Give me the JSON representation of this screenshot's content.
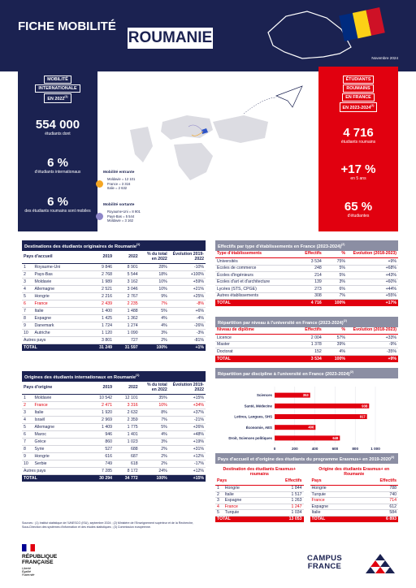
{
  "header": {
    "title": "FICHE MOBILITÉ",
    "country": "ROUMANIE",
    "date": "Novembre 2024"
  },
  "outgoing_panel": {
    "label": [
      "MOBILITÉ",
      "INTERNATIONALE",
      "EN 2022"
    ],
    "label_note": "(1)",
    "stats": [
      {
        "value": "554 000",
        "text": "étudiants dont"
      },
      {
        "value": "6 %",
        "text": "d'étudiants internationaux"
      },
      {
        "value": "6 %",
        "text": "des étudiants roumains sont mobiles"
      }
    ]
  },
  "map_legend": [
    {
      "title": "Mobilité entrante",
      "color": "#f5a623",
      "items": [
        "Moldavie = 12 101",
        "France = 3 316",
        "Italie = 2 632"
      ]
    },
    {
      "title": "Mobilité sortante",
      "color": "#8e86c8",
      "items": [
        "Royaume-Uni = 8 901",
        "Pays-Bas = 5 544",
        "Moldavie = 3 162"
      ]
    }
  ],
  "france_panel": {
    "label": [
      "ÉTUDIANTS",
      "ROUMAINS",
      "EN FRANCE",
      "EN 2023-2024"
    ],
    "label_note": "(2)",
    "stats": [
      {
        "value": "4 716",
        "text": "étudiants roumains"
      },
      {
        "value": "+17 %",
        "text": "en 5 ans"
      },
      {
        "value": "65 %",
        "text": "d'étudiantes"
      }
    ]
  },
  "destinations_table": {
    "title": "Destinations des étudiants originaires de Roumanie",
    "title_note": "(1)",
    "headers": [
      "Pays d'accueil",
      "2019",
      "2022",
      "% du total en 2022",
      "Évolution 2019-2022"
    ],
    "rows": [
      [
        "1",
        "Royaume-Uni",
        "9 846",
        "8 901",
        "28%",
        "-10%"
      ],
      [
        "2",
        "Pays-Bas",
        "2 768",
        "5 544",
        "18%",
        "+100%"
      ],
      [
        "3",
        "Moldavie",
        "1 989",
        "3 162",
        "10%",
        "+59%"
      ],
      [
        "4",
        "Allemagne",
        "2 521",
        "3 046",
        "10%",
        "+21%"
      ],
      [
        "5",
        "Hongrie",
        "2 216",
        "2 767",
        "9%",
        "+25%"
      ],
      [
        "6",
        "France",
        "2 439",
        "2 235",
        "7%",
        "-8%"
      ],
      [
        "7",
        "Italie",
        "1 400",
        "1 488",
        "5%",
        "+6%"
      ],
      [
        "8",
        "Espagne",
        "1 425",
        "1 362",
        "4%",
        "-4%"
      ],
      [
        "9",
        "Danemark",
        "1 724",
        "1 274",
        "4%",
        "-26%"
      ],
      [
        "10",
        "Autriche",
        "1 120",
        "1 090",
        "3%",
        "-3%"
      ],
      [
        "Autres pays",
        "3 801",
        "727",
        "2%",
        "-81%"
      ]
    ],
    "highlight": 5,
    "total": [
      "TOTAL",
      "31 249",
      "31 597",
      "100%",
      "+1%"
    ]
  },
  "origins_table": {
    "title": "Origines des étudiants internationaux en Roumanie",
    "title_note": "(1)",
    "headers": [
      "Pays d'origine",
      "2019",
      "2022",
      "% du total en 2022",
      "Évolution 2019-2022"
    ],
    "rows": [
      [
        "1",
        "Moldavie",
        "10 542",
        "12 101",
        "35%",
        "+15%"
      ],
      [
        "2",
        "France",
        "2 471",
        "3 316",
        "10%",
        "+34%"
      ],
      [
        "3",
        "Italie",
        "1 920",
        "2 632",
        "8%",
        "+37%"
      ],
      [
        "4",
        "Israël",
        "2 969",
        "2 359",
        "7%",
        "-21%"
      ],
      [
        "5",
        "Allemagne",
        "1 409",
        "1 775",
        "5%",
        "+26%"
      ],
      [
        "6",
        "Maroc",
        "946",
        "1 401",
        "4%",
        "+48%"
      ],
      [
        "7",
        "Grèce",
        "860",
        "1 023",
        "3%",
        "+19%"
      ],
      [
        "8",
        "Syrie",
        "527",
        "688",
        "2%",
        "+31%"
      ],
      [
        "9",
        "Hongrie",
        "616",
        "687",
        "2%",
        "+12%"
      ],
      [
        "10",
        "Serbie",
        "749",
        "618",
        "2%",
        "-17%"
      ],
      [
        "Autres pays",
        "7 285",
        "8 172",
        "24%",
        "+12%"
      ]
    ],
    "highlight": 1,
    "total": [
      "TOTAL",
      "30 294",
      "34 772",
      "100%",
      "+15%"
    ]
  },
  "institutions_table": {
    "title": "Effectifs par type d'établissements en France (2023-2024)",
    "title_note": "(2)",
    "headers": [
      "Type d'établissements",
      "Effectifs",
      "%",
      "Évolution (2018-2023)"
    ],
    "rows": [
      [
        "Universités",
        "3 534",
        "75%",
        "+9%"
      ],
      [
        "Écoles de commerce",
        "248",
        "5%",
        "+68%"
      ],
      [
        "Écoles d'ingénieurs",
        "214",
        "5%",
        "+43%"
      ],
      [
        "Écoles d'art et d'architecture",
        "139",
        "3%",
        "+60%"
      ],
      [
        "Lycées (STS, CPGE)",
        "273",
        "6%",
        "+44%"
      ],
      [
        "Autres établissements",
        "308",
        "7%",
        "+55%"
      ]
    ],
    "total": [
      "TOTAL",
      "4 716",
      "100%",
      "+17%"
    ]
  },
  "levels_table": {
    "title": "Répartition par niveau à l'université en France (2023-2024)",
    "title_note": "(2)",
    "headers": [
      "Niveau de diplôme",
      "Effectifs",
      "%",
      "Évolution (2018-2023)"
    ],
    "rows": [
      [
        "Licence",
        "2 004",
        "57%",
        "+33%"
      ],
      [
        "Master",
        "1 378",
        "39%",
        "-9%"
      ],
      [
        "Doctorat",
        "152",
        "4%",
        "-35%"
      ]
    ],
    "total": [
      "TOTAL",
      "3 534",
      "100%",
      "+9%"
    ]
  },
  "chart_data": {
    "type": "bar",
    "orientation": "horizontal",
    "title": "Répartition par discipline à l'université en France (2023-2024)",
    "title_note": "(2)",
    "categories": [
      "Sciences",
      "Santé, Médecine",
      "Lettres, Langues, SHS",
      "Économie, AES",
      "Droit, Sciences politiques"
    ],
    "values": [
      353,
      938,
      917,
      406,
      648
    ],
    "color": "#e1000f",
    "xlim": [
      0,
      1000
    ],
    "xticks": [
      0,
      200,
      400,
      600,
      800,
      {
        "value": 1000,
        "label": "1 000"
      }
    ],
    "grid": true
  },
  "erasmus": {
    "title": "Pays d'accueil et d'origine des étudiants du programme Erasmus+ en 2019-2020",
    "title_note": "(3)",
    "destination": {
      "title": "Destination des étudiants Erasmus+ roumains",
      "headers": [
        "Pays",
        "Effectifs"
      ],
      "rows": [
        [
          "1",
          "Hongrie",
          "1 844"
        ],
        [
          "2",
          "Italie",
          "1 517"
        ],
        [
          "3",
          "Espagne",
          "1 263"
        ],
        [
          "4",
          "France",
          "1 247"
        ],
        [
          "5",
          "Turquie",
          "1 034"
        ]
      ],
      "highlight": 3,
      "total": [
        "TOTAL",
        "13 053"
      ]
    },
    "origin": {
      "title": "Origine des étudiants Erasmus+ en Roumanie",
      "headers": [
        "Pays",
        "Effectifs"
      ],
      "rows": [
        [
          "Hongrie",
          "788"
        ],
        [
          "Turquie",
          "740"
        ],
        [
          "France",
          "714"
        ],
        [
          "Espagne",
          "612"
        ],
        [
          "Italie",
          "584"
        ]
      ],
      "highlight": 2,
      "total": [
        "TOTAL",
        "6 893"
      ]
    }
  },
  "sources": "Sources : (1) Institut statistique de l'UNESCO (ISU), septembre 2024 ; (2) Ministère de l'Enseignement supérieur et de la Recherche, Sous-Direction des systèmes d'information et des études statistiques ; (3) Commission européenne.",
  "footer": {
    "republic": [
      "RÉPUBLIQUE",
      "FRANÇAISE"
    ],
    "motto": [
      "Liberté",
      "Égalité",
      "Fraternité"
    ],
    "brand": [
      "CAMPUS",
      "FRANCE"
    ]
  }
}
